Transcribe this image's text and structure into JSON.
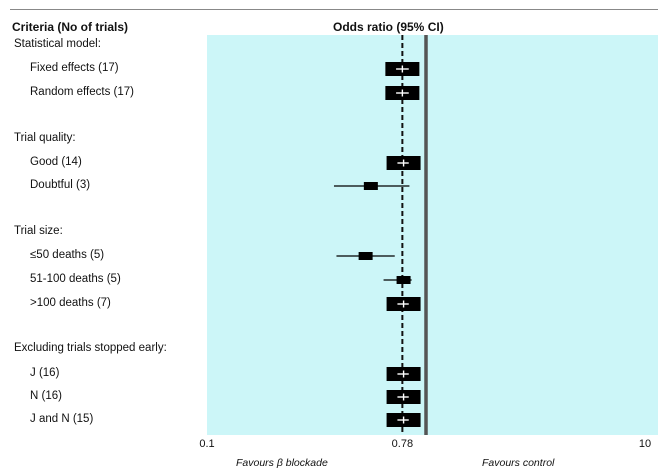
{
  "colors": {
    "plot_background": "#ccf6f8",
    "box": "#000000",
    "box_center": "#ffffff",
    "reference_line": "#111111",
    "no_effect_line": "#555555"
  },
  "header": {
    "criteria": "Criteria (No of trials)",
    "effect": "Odds ratio (95% CI)"
  },
  "footer": {
    "favours_left": "Favours β blockade",
    "favours_right": "Favours control"
  },
  "chart_data": {
    "type": "forest",
    "x_axis": {
      "scale": "log",
      "range": [
        0.1,
        10
      ],
      "tick_labels": [
        "0.1",
        "0.78",
        "10"
      ]
    },
    "reference_line": 0.78,
    "no_effect_line": 1,
    "grid": false,
    "groups": [
      {
        "label": "Statistical model:",
        "rows": [
          {
            "label": "Fixed effects (17)",
            "or": 0.78,
            "ci": [
              0.7,
              0.87
            ],
            "wide_box": true
          },
          {
            "label": "Random effects (17)",
            "or": 0.78,
            "ci": [
              0.7,
              0.87
            ],
            "wide_box": true
          }
        ]
      },
      {
        "label": "Trial quality:",
        "rows": [
          {
            "label": "Good (14)",
            "or": 0.79,
            "ci": [
              0.71,
              0.87
            ],
            "wide_box": true
          },
          {
            "label": "Doubtful (3)",
            "or": 0.56,
            "ci": [
              0.38,
              0.84
            ],
            "wide_box": false
          }
        ]
      },
      {
        "label": "Trial size:",
        "rows": [
          {
            "label": "≤50 deaths (5)",
            "or": 0.53,
            "ci": [
              0.39,
              0.72
            ],
            "wide_box": false
          },
          {
            "label": "51-100 deaths (5)",
            "or": 0.79,
            "ci": [
              0.64,
              0.86
            ],
            "wide_box": false
          },
          {
            "label": ">100 deaths (7)",
            "or": 0.79,
            "ci": [
              0.71,
              0.87
            ],
            "wide_box": true
          }
        ]
      },
      {
        "label": "Excluding trials stopped early:",
        "rows": [
          {
            "label": "J (16)",
            "or": 0.79,
            "ci": [
              0.71,
              0.87
            ],
            "wide_box": true
          },
          {
            "label": "N (16)",
            "or": 0.79,
            "ci": [
              0.71,
              0.87
            ],
            "wide_box": true
          },
          {
            "label": "J and N (15)",
            "or": 0.79,
            "ci": [
              0.71,
              0.87
            ],
            "wide_box": true
          }
        ]
      }
    ]
  }
}
